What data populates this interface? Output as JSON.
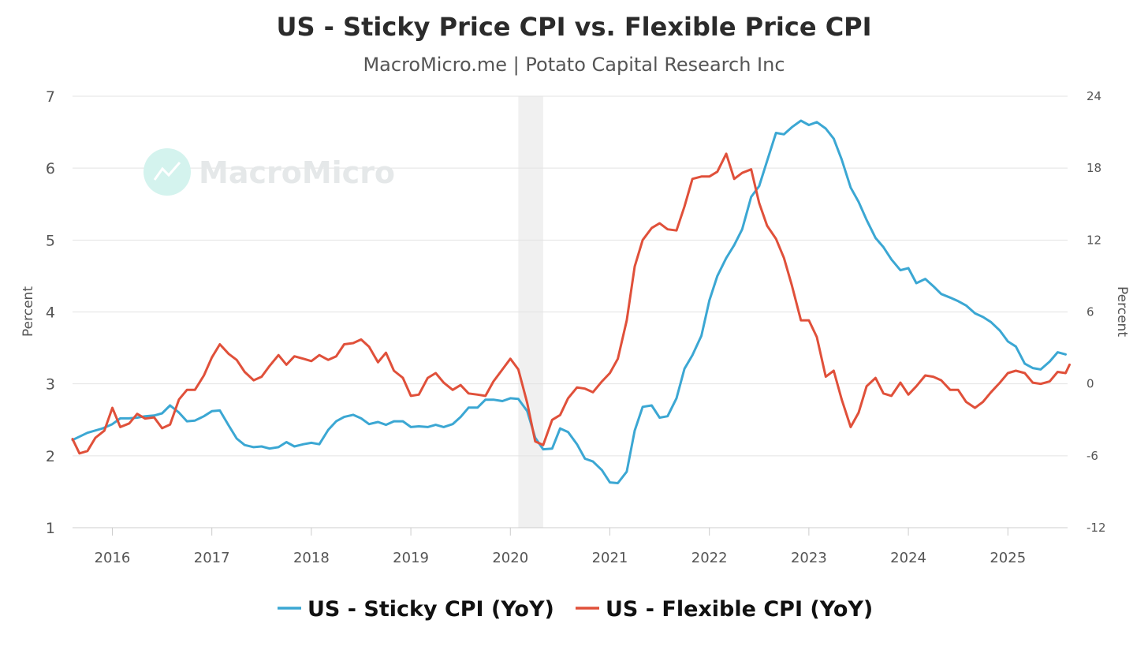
{
  "chart_data": {
    "type": "line",
    "title": "US - Sticky Price CPI vs. Flexible Price CPI",
    "subtitle": "MacroMicro.me | Potato Capital Research Inc",
    "watermark": "MacroMicro",
    "colors": {
      "sticky": "#3ba7d3",
      "flexible": "#e0503a",
      "grid": "#e3e3e3",
      "recession": "#f0f0f0"
    },
    "x_axis": {
      "range": [
        2015.6,
        2025.6
      ],
      "ticks": [
        "2016",
        "2017",
        "2018",
        "2019",
        "2020",
        "2021",
        "2022",
        "2023",
        "2024",
        "2025"
      ]
    },
    "y_left": {
      "label": "Percent",
      "range": [
        1,
        7
      ],
      "ticks": [
        "1",
        "2",
        "3",
        "4",
        "5",
        "6",
        "7"
      ]
    },
    "y_right": {
      "label": "Percent",
      "range": [
        -12,
        24
      ],
      "ticks": [
        "-12",
        "-6",
        "0",
        "6",
        "12",
        "18",
        "24"
      ]
    },
    "shaded_periods": [
      {
        "start": 2020.08,
        "end": 2020.33
      }
    ],
    "series": [
      {
        "name": "US - Sticky CPI (YoY)",
        "axis": "left",
        "points": [
          [
            2015.6,
            2.22
          ],
          [
            2015.75,
            2.32
          ],
          [
            2015.9,
            2.38
          ],
          [
            2016.0,
            2.44
          ],
          [
            2016.08,
            2.52
          ],
          [
            2016.17,
            2.52
          ],
          [
            2016.25,
            2.53
          ],
          [
            2016.33,
            2.55
          ],
          [
            2016.42,
            2.56
          ],
          [
            2016.5,
            2.59
          ],
          [
            2016.58,
            2.7
          ],
          [
            2016.67,
            2.6
          ],
          [
            2016.75,
            2.48
          ],
          [
            2016.83,
            2.49
          ],
          [
            2016.92,
            2.55
          ],
          [
            2017.0,
            2.62
          ],
          [
            2017.08,
            2.63
          ],
          [
            2017.17,
            2.42
          ],
          [
            2017.25,
            2.24
          ],
          [
            2017.33,
            2.15
          ],
          [
            2017.42,
            2.12
          ],
          [
            2017.5,
            2.13
          ],
          [
            2017.58,
            2.1
          ],
          [
            2017.67,
            2.12
          ],
          [
            2017.75,
            2.19
          ],
          [
            2017.83,
            2.13
          ],
          [
            2017.92,
            2.16
          ],
          [
            2018.0,
            2.18
          ],
          [
            2018.08,
            2.16
          ],
          [
            2018.17,
            2.36
          ],
          [
            2018.25,
            2.48
          ],
          [
            2018.33,
            2.54
          ],
          [
            2018.42,
            2.57
          ],
          [
            2018.5,
            2.52
          ],
          [
            2018.58,
            2.44
          ],
          [
            2018.67,
            2.47
          ],
          [
            2018.75,
            2.43
          ],
          [
            2018.83,
            2.48
          ],
          [
            2018.92,
            2.48
          ],
          [
            2019.0,
            2.4
          ],
          [
            2019.08,
            2.41
          ],
          [
            2019.17,
            2.4
          ],
          [
            2019.25,
            2.43
          ],
          [
            2019.33,
            2.4
          ],
          [
            2019.42,
            2.44
          ],
          [
            2019.5,
            2.54
          ],
          [
            2019.58,
            2.67
          ],
          [
            2019.67,
            2.67
          ],
          [
            2019.75,
            2.78
          ],
          [
            2019.83,
            2.78
          ],
          [
            2019.92,
            2.76
          ],
          [
            2020.0,
            2.8
          ],
          [
            2020.08,
            2.79
          ],
          [
            2020.17,
            2.62
          ],
          [
            2020.25,
            2.25
          ],
          [
            2020.33,
            2.09
          ],
          [
            2020.42,
            2.1
          ],
          [
            2020.5,
            2.38
          ],
          [
            2020.58,
            2.33
          ],
          [
            2020.67,
            2.16
          ],
          [
            2020.75,
            1.96
          ],
          [
            2020.83,
            1.92
          ],
          [
            2020.92,
            1.8
          ],
          [
            2021.0,
            1.63
          ],
          [
            2021.08,
            1.62
          ],
          [
            2021.17,
            1.78
          ],
          [
            2021.25,
            2.35
          ],
          [
            2021.33,
            2.68
          ],
          [
            2021.42,
            2.7
          ],
          [
            2021.5,
            2.53
          ],
          [
            2021.58,
            2.55
          ],
          [
            2021.67,
            2.8
          ],
          [
            2021.75,
            3.21
          ],
          [
            2021.83,
            3.4
          ],
          [
            2021.92,
            3.67
          ],
          [
            2022.0,
            4.16
          ],
          [
            2022.08,
            4.5
          ],
          [
            2022.17,
            4.75
          ],
          [
            2022.25,
            4.93
          ],
          [
            2022.33,
            5.15
          ],
          [
            2022.42,
            5.6
          ],
          [
            2022.5,
            5.75
          ],
          [
            2022.58,
            6.1
          ],
          [
            2022.67,
            6.49
          ],
          [
            2022.75,
            6.47
          ],
          [
            2022.83,
            6.57
          ],
          [
            2022.92,
            6.66
          ],
          [
            2023.0,
            6.6
          ],
          [
            2023.08,
            6.64
          ],
          [
            2023.17,
            6.55
          ],
          [
            2023.25,
            6.41
          ],
          [
            2023.33,
            6.12
          ],
          [
            2023.42,
            5.73
          ],
          [
            2023.5,
            5.53
          ],
          [
            2023.58,
            5.28
          ],
          [
            2023.67,
            5.03
          ],
          [
            2023.75,
            4.9
          ],
          [
            2023.83,
            4.73
          ],
          [
            2023.92,
            4.58
          ],
          [
            2024.0,
            4.61
          ],
          [
            2024.08,
            4.4
          ],
          [
            2024.17,
            4.46
          ],
          [
            2024.25,
            4.36
          ],
          [
            2024.33,
            4.25
          ],
          [
            2024.42,
            4.2
          ],
          [
            2024.5,
            4.15
          ],
          [
            2024.58,
            4.09
          ],
          [
            2024.67,
            3.98
          ],
          [
            2024.75,
            3.93
          ],
          [
            2024.83,
            3.86
          ],
          [
            2024.92,
            3.74
          ],
          [
            2025.0,
            3.59
          ],
          [
            2025.08,
            3.52
          ],
          [
            2025.17,
            3.28
          ],
          [
            2025.25,
            3.22
          ],
          [
            2025.33,
            3.2
          ],
          [
            2025.42,
            3.31
          ],
          [
            2025.5,
            3.44
          ],
          [
            2025.58,
            3.41
          ]
        ]
      },
      {
        "name": "US - Flexible CPI (YoY)",
        "axis": "right",
        "points": [
          [
            2015.6,
            -4.6
          ],
          [
            2015.67,
            -5.8
          ],
          [
            2015.75,
            -5.6
          ],
          [
            2015.83,
            -4.5
          ],
          [
            2015.92,
            -3.9
          ],
          [
            2016.0,
            -2.0
          ],
          [
            2016.08,
            -3.6
          ],
          [
            2016.17,
            -3.3
          ],
          [
            2016.25,
            -2.5
          ],
          [
            2016.33,
            -2.9
          ],
          [
            2016.42,
            -2.8
          ],
          [
            2016.5,
            -3.7
          ],
          [
            2016.58,
            -3.4
          ],
          [
            2016.67,
            -1.3
          ],
          [
            2016.75,
            -0.5
          ],
          [
            2016.83,
            -0.5
          ],
          [
            2016.92,
            0.7
          ],
          [
            2017.0,
            2.2
          ],
          [
            2017.08,
            3.3
          ],
          [
            2017.17,
            2.5
          ],
          [
            2017.25,
            2.0
          ],
          [
            2017.33,
            1.0
          ],
          [
            2017.42,
            0.3
          ],
          [
            2017.5,
            0.6
          ],
          [
            2017.58,
            1.5
          ],
          [
            2017.67,
            2.4
          ],
          [
            2017.75,
            1.6
          ],
          [
            2017.83,
            2.3
          ],
          [
            2017.92,
            2.1
          ],
          [
            2018.0,
            1.9
          ],
          [
            2018.08,
            2.4
          ],
          [
            2018.17,
            2.0
          ],
          [
            2018.25,
            2.3
          ],
          [
            2018.33,
            3.3
          ],
          [
            2018.42,
            3.4
          ],
          [
            2018.5,
            3.7
          ],
          [
            2018.58,
            3.1
          ],
          [
            2018.67,
            1.8
          ],
          [
            2018.75,
            2.6
          ],
          [
            2018.83,
            1.1
          ],
          [
            2018.92,
            0.5
          ],
          [
            2019.0,
            -1.0
          ],
          [
            2019.08,
            -0.9
          ],
          [
            2019.17,
            0.5
          ],
          [
            2019.25,
            0.9
          ],
          [
            2019.33,
            0.1
          ],
          [
            2019.42,
            -0.5
          ],
          [
            2019.5,
            -0.1
          ],
          [
            2019.58,
            -0.8
          ],
          [
            2019.67,
            -0.9
          ],
          [
            2019.75,
            -1.0
          ],
          [
            2019.83,
            0.2
          ],
          [
            2019.92,
            1.2
          ],
          [
            2020.0,
            2.1
          ],
          [
            2020.08,
            1.2
          ],
          [
            2020.17,
            -1.6
          ],
          [
            2020.25,
            -4.8
          ],
          [
            2020.33,
            -5.1
          ],
          [
            2020.42,
            -3.0
          ],
          [
            2020.5,
            -2.6
          ],
          [
            2020.58,
            -1.2
          ],
          [
            2020.67,
            -0.3
          ],
          [
            2020.75,
            -0.4
          ],
          [
            2020.83,
            -0.7
          ],
          [
            2020.92,
            0.2
          ],
          [
            2021.0,
            0.9
          ],
          [
            2021.08,
            2.1
          ],
          [
            2021.17,
            5.3
          ],
          [
            2021.25,
            9.8
          ],
          [
            2021.33,
            12.0
          ],
          [
            2021.42,
            13.0
          ],
          [
            2021.5,
            13.4
          ],
          [
            2021.58,
            12.9
          ],
          [
            2021.67,
            12.8
          ],
          [
            2021.75,
            14.8
          ],
          [
            2021.83,
            17.1
          ],
          [
            2021.92,
            17.3
          ],
          [
            2022.0,
            17.3
          ],
          [
            2022.08,
            17.7
          ],
          [
            2022.17,
            19.2
          ],
          [
            2022.25,
            17.1
          ],
          [
            2022.33,
            17.6
          ],
          [
            2022.42,
            17.9
          ],
          [
            2022.5,
            15.1
          ],
          [
            2022.58,
            13.2
          ],
          [
            2022.67,
            12.1
          ],
          [
            2022.75,
            10.5
          ],
          [
            2022.83,
            8.2
          ],
          [
            2022.92,
            5.3
          ],
          [
            2023.0,
            5.3
          ],
          [
            2023.08,
            3.9
          ],
          [
            2023.17,
            0.6
          ],
          [
            2023.25,
            1.1
          ],
          [
            2023.33,
            -1.3
          ],
          [
            2023.42,
            -3.6
          ],
          [
            2023.5,
            -2.4
          ],
          [
            2023.58,
            -0.2
          ],
          [
            2023.67,
            0.5
          ],
          [
            2023.75,
            -0.8
          ],
          [
            2023.83,
            -1.0
          ],
          [
            2023.92,
            0.1
          ],
          [
            2024.0,
            -0.9
          ],
          [
            2024.08,
            -0.2
          ],
          [
            2024.17,
            0.7
          ],
          [
            2024.25,
            0.6
          ],
          [
            2024.33,
            0.3
          ],
          [
            2024.42,
            -0.5
          ],
          [
            2024.5,
            -0.5
          ],
          [
            2024.58,
            -1.5
          ],
          [
            2024.67,
            -2.0
          ],
          [
            2024.75,
            -1.5
          ],
          [
            2024.83,
            -0.7
          ],
          [
            2024.92,
            0.1
          ],
          [
            2025.0,
            0.9
          ],
          [
            2025.08,
            1.1
          ],
          [
            2025.17,
            0.9
          ],
          [
            2025.25,
            0.1
          ],
          [
            2025.33,
            0.0
          ],
          [
            2025.42,
            0.2
          ],
          [
            2025.5,
            1.0
          ],
          [
            2025.58,
            0.9
          ],
          [
            2025.62,
            1.6
          ]
        ]
      }
    ]
  }
}
